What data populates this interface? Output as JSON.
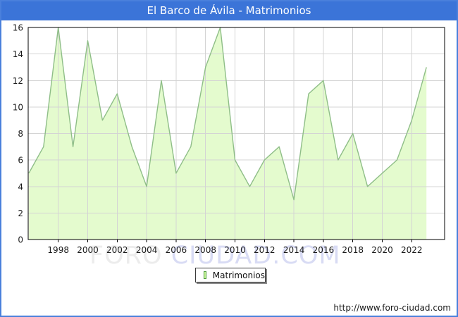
{
  "window": {
    "title": "El Barco de Ávila - Matrimonios"
  },
  "chart_data": {
    "type": "area",
    "title": "El Barco de Ávila - Matrimonios",
    "series_name": "Matrimonios",
    "x": [
      1996,
      1997,
      1998,
      1999,
      2000,
      2001,
      2002,
      2003,
      2004,
      2005,
      2006,
      2007,
      2008,
      2009,
      2010,
      2011,
      2012,
      2013,
      2014,
      2015,
      2016,
      2017,
      2018,
      2019,
      2020,
      2021,
      2022,
      2023
    ],
    "values": [
      5,
      7,
      16,
      7,
      15,
      9,
      11,
      7,
      4,
      12,
      5,
      7,
      13,
      16,
      6,
      4,
      6,
      7,
      3,
      11,
      12,
      6,
      8,
      4,
      5,
      6,
      9,
      13
    ],
    "xlabel": "",
    "ylabel": "",
    "ylim": [
      0,
      16
    ],
    "yticks": [
      "0",
      "2",
      "4",
      "6",
      "8",
      "10",
      "12",
      "14",
      "16"
    ],
    "xticks": [
      "1998",
      "2000",
      "2002",
      "2004",
      "2006",
      "2008",
      "2010",
      "2012",
      "2014",
      "2016",
      "2018",
      "2020",
      "2022"
    ],
    "grid": true,
    "legend_position": "bottom-center",
    "colors": {
      "fill": "#e4fbce",
      "line": "#8fbe88",
      "grid": "#d4d4d4",
      "plot_border": "#000000",
      "tick_text": "#1a1a1a",
      "titlebar": "#3b74d8",
      "frame_border": "#4a80dc",
      "legend_swatch_fill": "#c9f59b",
      "legend_swatch_border": "#4e9a3f"
    }
  },
  "legend": {
    "label": "Matrimonios"
  },
  "watermark": {
    "part1": "FORO",
    "part2": " CIUDAD.COM"
  },
  "footer": {
    "url": "http://www.foro-ciudad.com"
  }
}
